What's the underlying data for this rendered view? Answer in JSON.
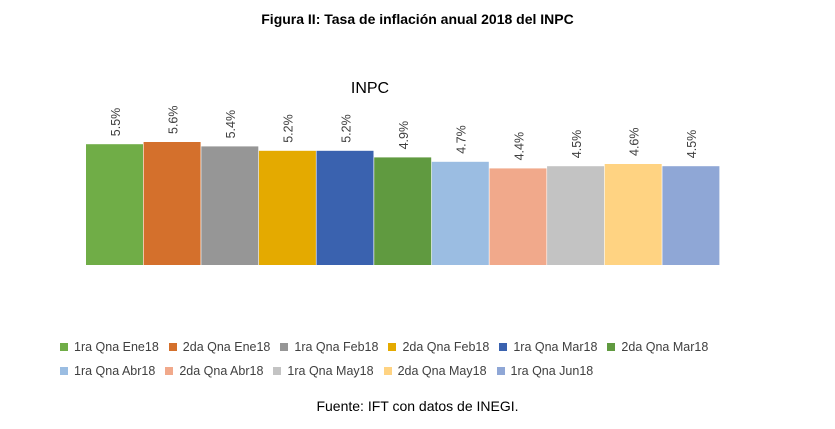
{
  "figure_title": "Figura II: Tasa de inflación anual 2018 del INPC",
  "source_note": "Fuente: IFT con datos de INEGI.",
  "chart_data": {
    "type": "bar",
    "title": "INPC",
    "xlabel": "",
    "ylabel": "",
    "ylim": [
      0,
      5.6
    ],
    "grid": false,
    "legend_position": "bottom",
    "series": [
      {
        "name": "1ra Qna Ene18",
        "value": 5.5,
        "label": "5.5%",
        "color": "#70AD47"
      },
      {
        "name": "2da Qna Ene18",
        "value": 5.6,
        "label": "5.6%",
        "color": "#D4702C"
      },
      {
        "name": "1ra Qna Feb18",
        "value": 5.4,
        "label": "5.4%",
        "color": "#969696"
      },
      {
        "name": "2da Qna Feb18",
        "value": 5.2,
        "label": "5.2%",
        "color": "#E4AA00"
      },
      {
        "name": "1ra Qna Mar18",
        "value": 5.2,
        "label": "5.2%",
        "color": "#3A62AF"
      },
      {
        "name": "2da Qna Mar18",
        "value": 4.9,
        "label": "4.9%",
        "color": "#609A40"
      },
      {
        "name": "1ra Qna Abr18",
        "value": 4.7,
        "label": "4.7%",
        "color": "#9BBDE2"
      },
      {
        "name": "2da Qna Abr18",
        "value": 4.4,
        "label": "4.4%",
        "color": "#F1A98B"
      },
      {
        "name": "1ra Qna May18",
        "value": 4.5,
        "label": "4.5%",
        "color": "#C3C3C3"
      },
      {
        "name": "2da Qna May18",
        "value": 4.6,
        "label": "4.6%",
        "color": "#FFD382"
      },
      {
        "name": "1ra Qna Jun18",
        "value": 4.5,
        "label": "4.5%",
        "color": "#8FA7D6"
      }
    ]
  }
}
